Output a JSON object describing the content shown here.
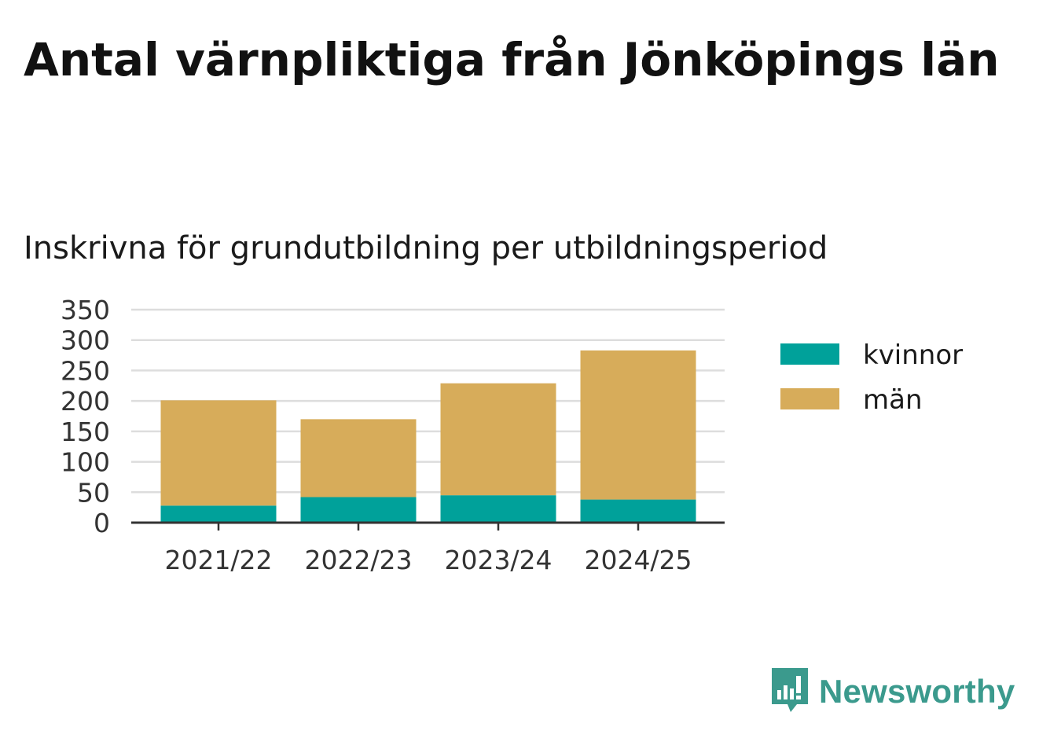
{
  "title": "Antal värnpliktiga från Jönköpings län",
  "subtitle": "Inskrivna för grundutbildning per utbildningsperiod",
  "brand": {
    "name": "Newsworthy",
    "icon": "newsworthy-logo-icon",
    "color": "#3b9a8d"
  },
  "colors": {
    "kvinnor": "#00a19a",
    "man": "#d7ac5a",
    "grid": "#dddddd",
    "axis": "#333333"
  },
  "chart_data": {
    "type": "bar",
    "stacked": true,
    "categories": [
      "2021/22",
      "2022/23",
      "2023/24",
      "2024/25"
    ],
    "series": [
      {
        "name": "kvinnor",
        "values": [
          28,
          42,
          45,
          38
        ]
      },
      {
        "name": "män",
        "values": [
          173,
          128,
          184,
          245
        ]
      }
    ],
    "y_ticks": [
      "0",
      "50",
      "100",
      "150",
      "200",
      "250",
      "300",
      "350"
    ],
    "ylim": [
      0,
      350
    ],
    "grid": true,
    "legend_position": "right"
  }
}
